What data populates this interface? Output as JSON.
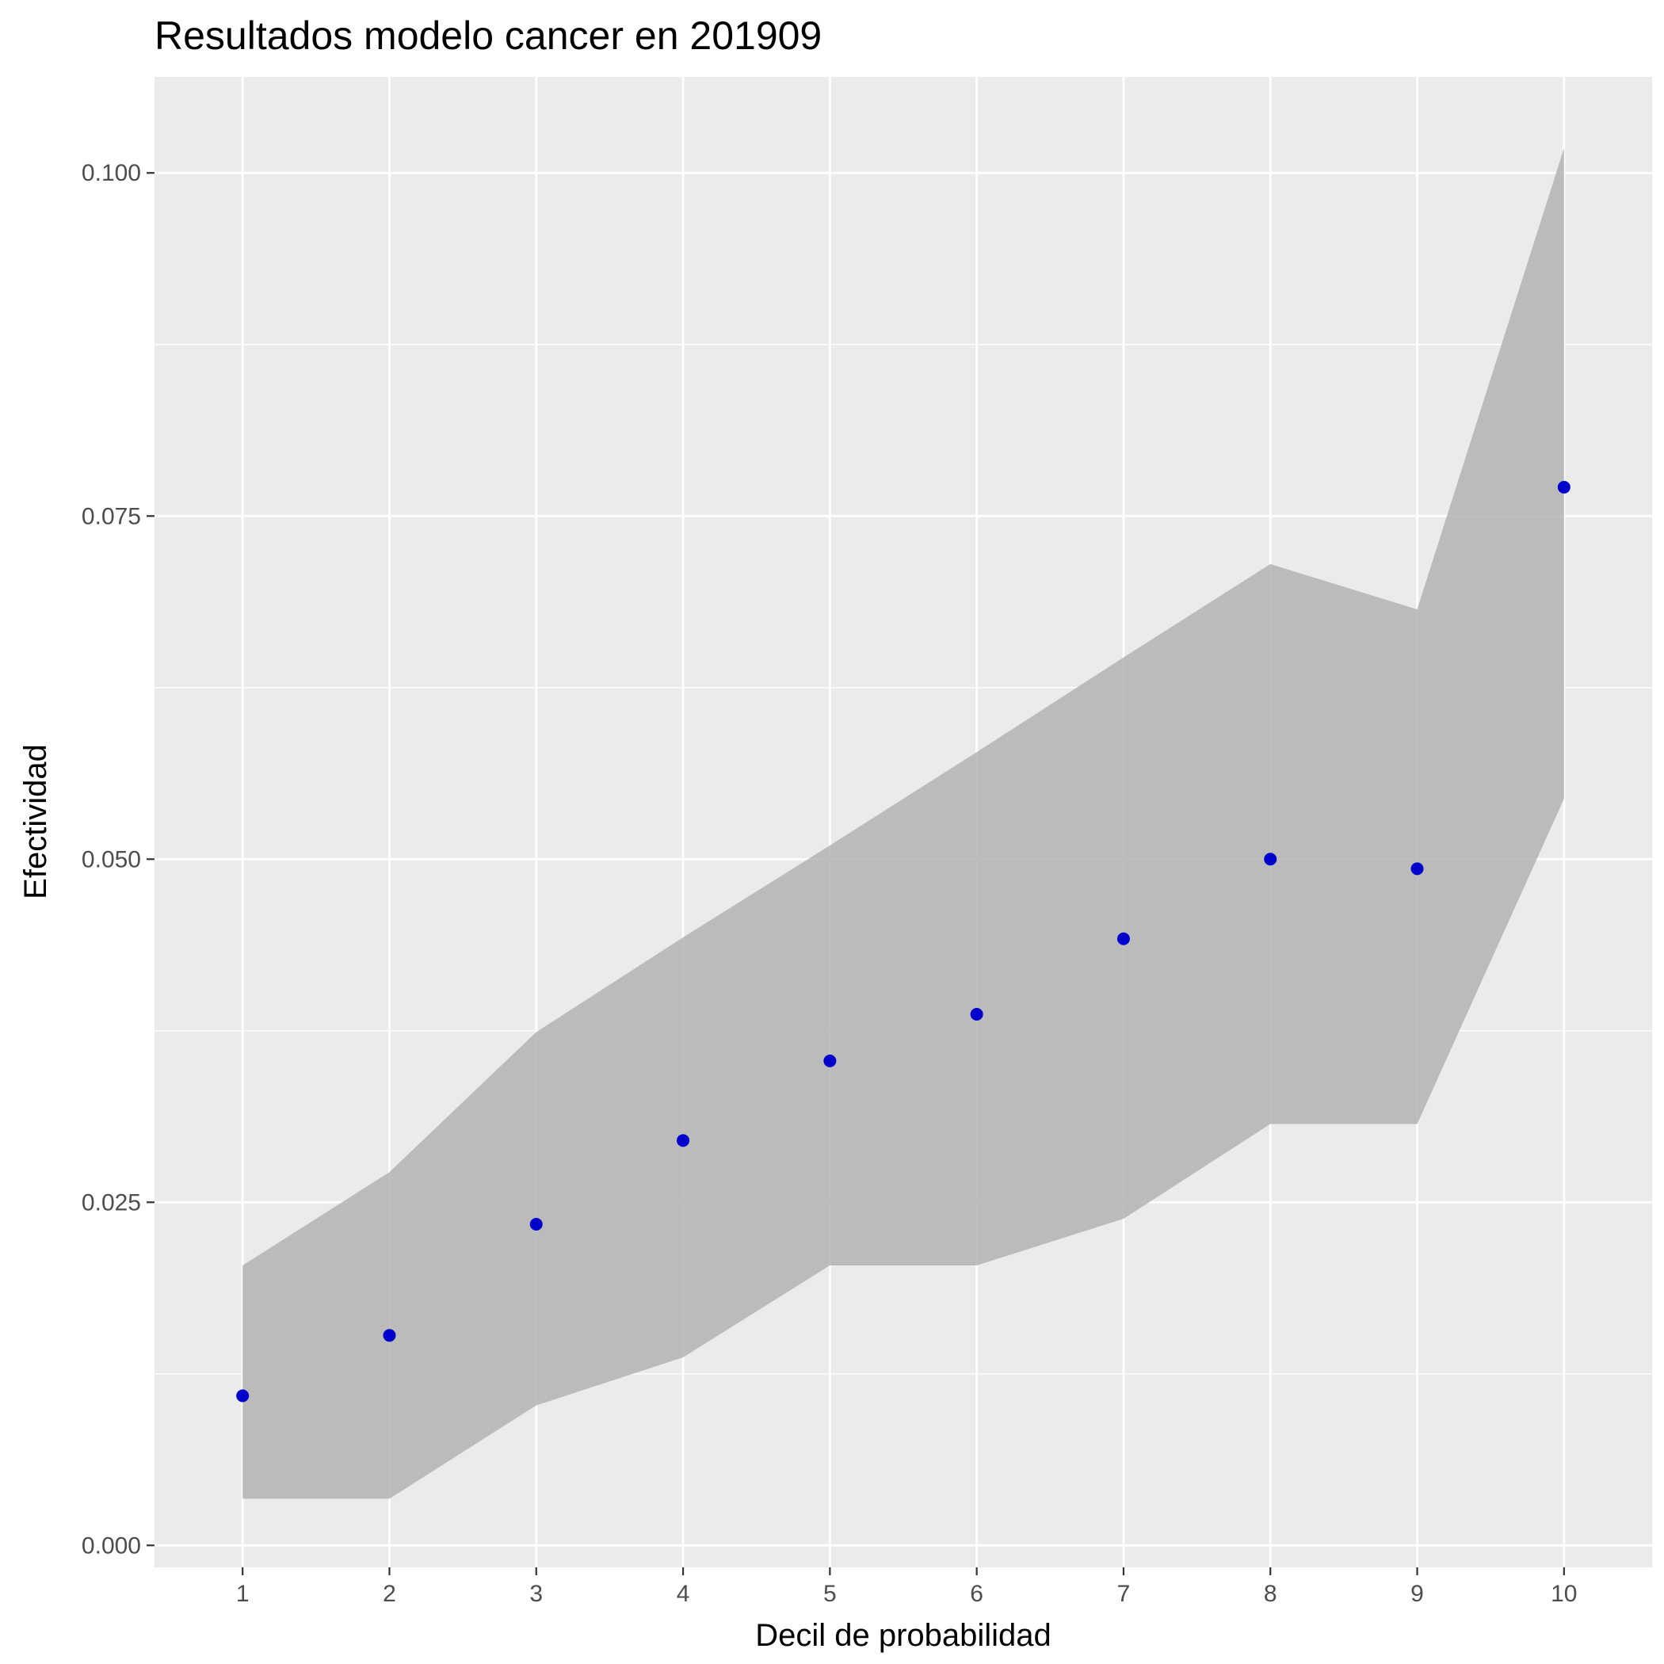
{
  "chart_data": {
    "type": "scatter",
    "title": "Resultados modelo cancer en 201909",
    "xlabel": "Decil de probabilidad",
    "ylabel": "Efectividad",
    "x": [
      1,
      2,
      3,
      4,
      5,
      6,
      7,
      8,
      9,
      10
    ],
    "x_tick_labels": [
      "1",
      "2",
      "3",
      "4",
      "5",
      "6",
      "7",
      "8",
      "9",
      "10"
    ],
    "series": [
      {
        "values": [
          0.0109,
          0.0153,
          0.0234,
          0.0295,
          0.0353,
          0.0387,
          0.0442,
          0.05,
          0.0493,
          0.0771
        ],
        "color": "#0000cd"
      }
    ],
    "band": {
      "lower": [
        0.0034,
        0.0034,
        0.0102,
        0.0137,
        0.0204,
        0.0204,
        0.0238,
        0.0307,
        0.0307,
        0.0544
      ],
      "upper": [
        0.0204,
        0.0272,
        0.0374,
        0.0443,
        0.051,
        0.0578,
        0.0647,
        0.0715,
        0.0682,
        0.1018
      ],
      "color": "#b3b3b3"
    },
    "y_ticks": [
      0.0,
      0.025,
      0.05,
      0.075,
      0.1
    ],
    "y_tick_labels": [
      "0.000",
      "0.025",
      "0.050",
      "0.075",
      "0.100"
    ],
    "xlim": [
      0.4,
      10.6
    ],
    "ylim": [
      -0.0016,
      0.107
    ],
    "grid": true,
    "panel_color": "#ebebeb",
    "grid_color": "#ffffff"
  }
}
